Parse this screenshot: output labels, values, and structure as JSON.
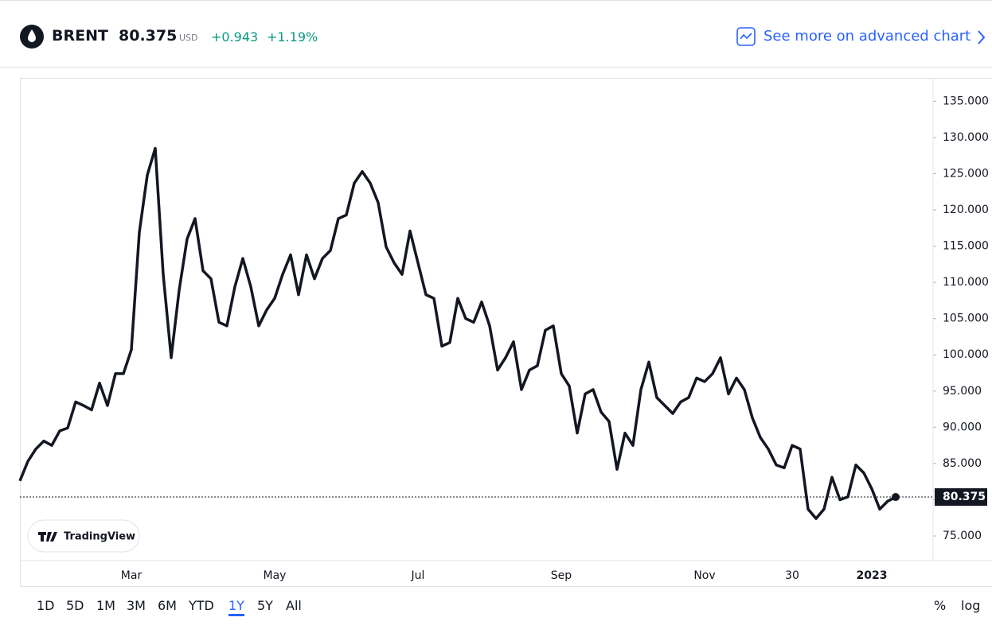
{
  "header": {
    "symbol": "BRENT",
    "price": "80.375",
    "currency": "USD",
    "change": "+0.943",
    "change_percent": "+1.19%",
    "link": "See more on advanced chart"
  },
  "chart_data": {
    "type": "line",
    "color": "#131722",
    "categories": [
      null,
      null,
      null,
      null,
      null,
      null,
      null,
      null,
      null,
      null,
      null,
      null,
      null,
      null,
      "Mar",
      null,
      null,
      null,
      null,
      null,
      null,
      null,
      null,
      null,
      null,
      null,
      null,
      null,
      null,
      null,
      null,
      null,
      "May",
      null,
      null,
      null,
      null,
      null,
      null,
      null,
      null,
      null,
      null,
      null,
      null,
      null,
      null,
      null,
      null,
      null,
      "Jul",
      null,
      null,
      null,
      null,
      null,
      null,
      null,
      null,
      null,
      null,
      null,
      null,
      null,
      null,
      null,
      null,
      null,
      "Sep",
      null,
      null,
      null,
      null,
      null,
      null,
      null,
      null,
      null,
      null,
      null,
      null,
      null,
      null,
      null,
      null,
      null,
      "Nov",
      null,
      null,
      null,
      null,
      null,
      null,
      null,
      null,
      null,
      null,
      "30",
      null,
      null,
      null,
      null,
      null,
      null,
      null,
      null,
      null,
      "2023",
      null,
      null,
      null
    ],
    "values": [
      82.6,
      85.3,
      87.0,
      88.1,
      87.5,
      89.5,
      89.9,
      93.5,
      93.0,
      92.4,
      96.1,
      93.0,
      97.4,
      97.4,
      100.7,
      116.9,
      124.8,
      128.5,
      111.1,
      99.6,
      108.9,
      116.0,
      118.8,
      111.6,
      110.5,
      104.5,
      104.0,
      109.4,
      113.3,
      109.4,
      104.0,
      106.2,
      107.8,
      111.1,
      113.8,
      108.3,
      113.8,
      110.5,
      113.3,
      114.4,
      118.8,
      119.3,
      123.7,
      125.3,
      123.7,
      121.0,
      114.9,
      112.7,
      111.1,
      117.1,
      112.7,
      108.3,
      107.8,
      101.2,
      101.7,
      107.8,
      105.0,
      104.5,
      107.3,
      104.0,
      97.9,
      99.6,
      101.8,
      95.2,
      97.9,
      98.5,
      103.4,
      104.0,
      97.4,
      95.7,
      89.2,
      94.6,
      95.2,
      92.1,
      90.8,
      84.2,
      89.2,
      87.5,
      95.2,
      99.0,
      94.1,
      93.0,
      91.9,
      93.5,
      94.1,
      96.8,
      96.3,
      97.4,
      99.6,
      94.6,
      96.8,
      95.2,
      91.3,
      88.6,
      87.0,
      84.8,
      84.4,
      87.5,
      87.0,
      78.7,
      77.4,
      78.7,
      83.1,
      80.0,
      80.4,
      84.8,
      83.7,
      81.5,
      78.7,
      79.8,
      80.375
    ],
    "ylim": [
      71.6,
      138
    ],
    "yticks": [
      {
        "value": 75,
        "label": "75.000"
      },
      {
        "value": 80,
        "label": "80.000"
      },
      {
        "value": 85,
        "label": "85.000"
      },
      {
        "value": 90,
        "label": "90.000"
      },
      {
        "value": 95,
        "label": "95.000"
      },
      {
        "value": 100,
        "label": "100.000"
      },
      {
        "value": 105,
        "label": "105.000"
      },
      {
        "value": 110,
        "label": "110.000"
      },
      {
        "value": 115,
        "label": "115.000"
      },
      {
        "value": 120,
        "label": "120.000"
      },
      {
        "value": 125,
        "label": "125.000"
      },
      {
        "value": 130,
        "label": "130.000"
      },
      {
        "value": 135,
        "label": "135.000"
      }
    ],
    "bold_category": "2023",
    "grid": false
  },
  "watermark": "TradingView",
  "range_buttons": [
    "1D",
    "5D",
    "1M",
    "3M",
    "6M",
    "YTD",
    "1Y",
    "5Y",
    "All"
  ],
  "active_range": "1Y",
  "scale_buttons": [
    "%",
    "log"
  ]
}
